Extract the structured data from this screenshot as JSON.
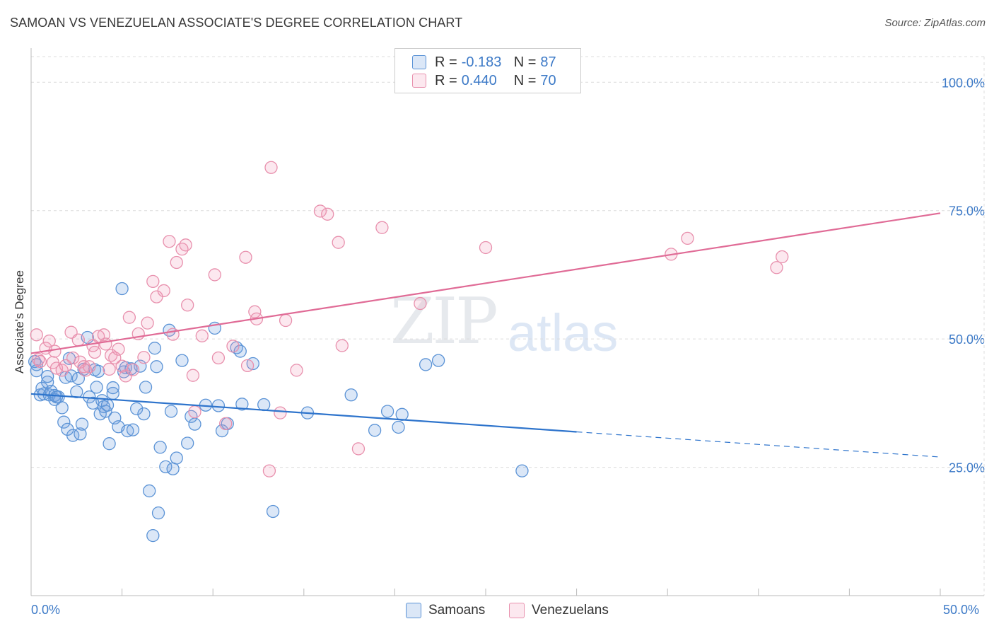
{
  "title": "SAMOAN VS VENEZUELAN ASSOCIATE'S DEGREE CORRELATION CHART",
  "source": "Source: ZipAtlas.com",
  "watermark": {
    "zip": "ZIP",
    "atlas": "atlas"
  },
  "colors": {
    "samoan_fill": "rgba(110,160,225,0.25)",
    "samoan_stroke": "#5b93d6",
    "samoan_line": "#2e74cc",
    "venezuelan_fill": "rgba(240,150,180,0.22)",
    "venezuelan_stroke": "#e890ad",
    "venezuelan_line": "#e06b96",
    "tick_label": "#3d7ac7",
    "grid": "#dcdcdc"
  },
  "legend": {
    "r_label": "R =",
    "n_label": "N =",
    "rows": [
      {
        "series": "Samoans",
        "r": "-0.183",
        "n": "87"
      },
      {
        "series": "Venezuelans",
        "r": "0.440",
        "n": "70"
      }
    ]
  },
  "chart_data": {
    "type": "scatter",
    "title": "SAMOAN VS VENEZUELAN ASSOCIATE'S DEGREE CORRELATION CHART",
    "xlabel": "",
    "ylabel": "Associate's Degree",
    "xlim": [
      0,
      50
    ],
    "ylim": [
      0,
      105
    ],
    "x_tick_labels": [
      "0.0%",
      "50.0%"
    ],
    "y_ticks": [
      25,
      50,
      75,
      100
    ],
    "y_tick_labels": [
      "25.0%",
      "50.0%",
      "75.0%",
      "100.0%"
    ],
    "grid": true,
    "legend_position": "top-center",
    "series": [
      {
        "name": "Samoans",
        "r": -0.183,
        "n": 87,
        "trend": {
          "x": [
            0,
            30
          ],
          "y": [
            39.3,
            31.9
          ],
          "dashed_to": [
            50,
            27.0
          ]
        },
        "points": [
          [
            0.2,
            45.6
          ],
          [
            0.3,
            43.8
          ],
          [
            0.3,
            45.0
          ],
          [
            0.5,
            39.1
          ],
          [
            0.6,
            40.4
          ],
          [
            0.7,
            39.3
          ],
          [
            0.9,
            41.6
          ],
          [
            0.9,
            42.7
          ],
          [
            1.0,
            39.1
          ],
          [
            1.1,
            39.8
          ],
          [
            1.3,
            38.2
          ],
          [
            1.3,
            39.0
          ],
          [
            1.5,
            38.7
          ],
          [
            1.7,
            36.6
          ],
          [
            1.8,
            33.8
          ],
          [
            1.9,
            42.5
          ],
          [
            2.1,
            46.2
          ],
          [
            2.2,
            42.8
          ],
          [
            2.3,
            31.2
          ],
          [
            2.5,
            39.7
          ],
          [
            2.6,
            42.3
          ],
          [
            2.7,
            31.5
          ],
          [
            2.8,
            33.4
          ],
          [
            2.9,
            44.1
          ],
          [
            3.1,
            50.3
          ],
          [
            3.2,
            38.7
          ],
          [
            3.4,
            37.5
          ],
          [
            3.5,
            44.0
          ],
          [
            3.6,
            40.6
          ],
          [
            3.7,
            43.7
          ],
          [
            3.8,
            35.4
          ],
          [
            3.9,
            38.0
          ],
          [
            4.0,
            36.8
          ],
          [
            4.1,
            35.9
          ],
          [
            4.2,
            37.1
          ],
          [
            4.3,
            29.6
          ],
          [
            4.5,
            39.4
          ],
          [
            4.5,
            40.5
          ],
          [
            4.6,
            34.6
          ],
          [
            4.8,
            32.9
          ],
          [
            5.0,
            59.8
          ],
          [
            5.1,
            43.6
          ],
          [
            5.2,
            44.4
          ],
          [
            5.3,
            32.1
          ],
          [
            5.6,
            32.3
          ],
          [
            5.8,
            36.4
          ],
          [
            6.0,
            44.7
          ],
          [
            6.2,
            35.4
          ],
          [
            6.3,
            40.6
          ],
          [
            6.5,
            20.4
          ],
          [
            6.7,
            11.7
          ],
          [
            6.8,
            48.2
          ],
          [
            6.9,
            44.6
          ],
          [
            7.0,
            16.1
          ],
          [
            7.1,
            28.9
          ],
          [
            7.4,
            25.1
          ],
          [
            7.6,
            51.7
          ],
          [
            7.7,
            35.9
          ],
          [
            7.8,
            24.7
          ],
          [
            8.0,
            26.8
          ],
          [
            8.3,
            45.8
          ],
          [
            8.6,
            29.7
          ],
          [
            8.8,
            34.9
          ],
          [
            9.0,
            33.4
          ],
          [
            9.6,
            37.1
          ],
          [
            10.3,
            37.0
          ],
          [
            10.5,
            32.1
          ],
          [
            10.8,
            33.5
          ],
          [
            11.3,
            48.3
          ],
          [
            11.5,
            47.6
          ],
          [
            11.6,
            37.3
          ],
          [
            12.2,
            45.2
          ],
          [
            12.8,
            37.2
          ],
          [
            13.3,
            16.4
          ],
          [
            15.2,
            35.6
          ],
          [
            17.6,
            39.1
          ],
          [
            18.9,
            32.2
          ],
          [
            19.6,
            35.9
          ],
          [
            20.2,
            32.8
          ],
          [
            20.4,
            35.3
          ],
          [
            21.7,
            45.0
          ],
          [
            22.4,
            45.8
          ],
          [
            27.0,
            24.3
          ],
          [
            10.1,
            52.1
          ],
          [
            1.4,
            38.7
          ],
          [
            2.0,
            32.4
          ],
          [
            5.5,
            44.2
          ]
        ]
      },
      {
        "name": "Venezuelans",
        "r": 0.44,
        "n": 70,
        "trend": {
          "x": [
            0,
            50
          ],
          "y": [
            47.2,
            74.5
          ]
        },
        "points": [
          [
            0.3,
            50.8
          ],
          [
            0.4,
            46.0
          ],
          [
            0.5,
            45.6
          ],
          [
            0.8,
            48.2
          ],
          [
            1.0,
            49.6
          ],
          [
            1.2,
            45.4
          ],
          [
            1.3,
            47.6
          ],
          [
            1.4,
            44.3
          ],
          [
            1.7,
            43.9
          ],
          [
            1.9,
            44.8
          ],
          [
            2.2,
            51.3
          ],
          [
            2.3,
            46.3
          ],
          [
            2.6,
            49.8
          ],
          [
            2.7,
            45.5
          ],
          [
            2.9,
            44.6
          ],
          [
            3.0,
            43.9
          ],
          [
            3.2,
            44.6
          ],
          [
            3.4,
            48.7
          ],
          [
            3.5,
            47.4
          ],
          [
            3.7,
            50.5
          ],
          [
            4.0,
            50.8
          ],
          [
            4.1,
            49.0
          ],
          [
            4.3,
            44.1
          ],
          [
            4.4,
            46.8
          ],
          [
            4.6,
            46.3
          ],
          [
            4.8,
            48.0
          ],
          [
            5.0,
            44.7
          ],
          [
            5.2,
            42.8
          ],
          [
            5.4,
            54.2
          ],
          [
            5.6,
            44.0
          ],
          [
            5.9,
            51.0
          ],
          [
            6.2,
            46.4
          ],
          [
            6.4,
            53.1
          ],
          [
            6.7,
            61.2
          ],
          [
            6.9,
            58.2
          ],
          [
            7.3,
            59.4
          ],
          [
            7.6,
            69.0
          ],
          [
            7.8,
            50.9
          ],
          [
            8.0,
            64.9
          ],
          [
            8.3,
            67.5
          ],
          [
            8.5,
            68.3
          ],
          [
            8.6,
            56.6
          ],
          [
            8.9,
            42.9
          ],
          [
            9.0,
            35.8
          ],
          [
            9.4,
            50.6
          ],
          [
            10.1,
            62.5
          ],
          [
            10.3,
            46.3
          ],
          [
            10.7,
            33.5
          ],
          [
            11.1,
            48.6
          ],
          [
            11.8,
            65.9
          ],
          [
            11.9,
            44.8
          ],
          [
            12.3,
            55.3
          ],
          [
            12.4,
            53.9
          ],
          [
            13.1,
            24.3
          ],
          [
            13.2,
            83.4
          ],
          [
            13.7,
            35.6
          ],
          [
            14.0,
            53.6
          ],
          [
            14.6,
            43.9
          ],
          [
            15.9,
            74.9
          ],
          [
            16.3,
            74.3
          ],
          [
            16.9,
            68.8
          ],
          [
            17.1,
            48.7
          ],
          [
            18.0,
            28.6
          ],
          [
            19.3,
            71.7
          ],
          [
            21.4,
            56.9
          ],
          [
            25.0,
            67.8
          ],
          [
            35.2,
            66.5
          ],
          [
            36.1,
            69.6
          ],
          [
            41.0,
            63.9
          ],
          [
            41.3,
            66.0
          ]
        ]
      }
    ]
  }
}
